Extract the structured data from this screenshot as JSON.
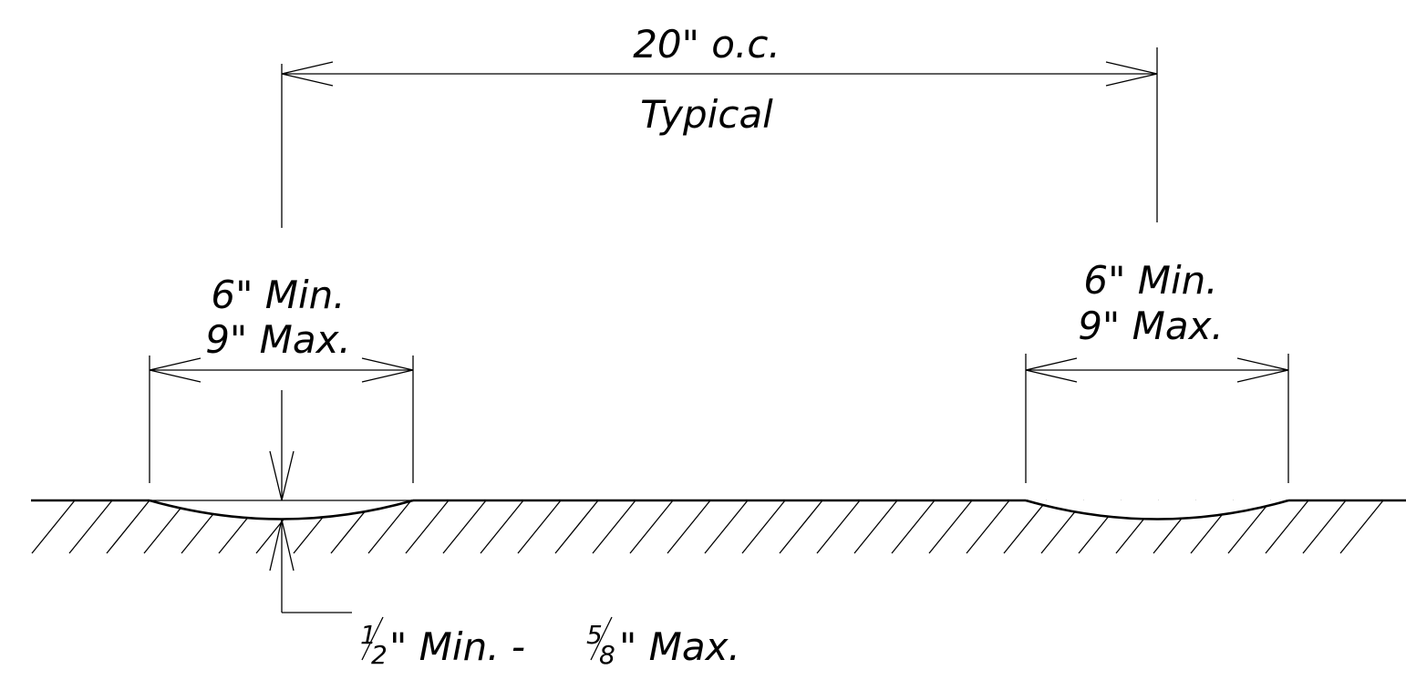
{
  "spacing_dimension": {
    "value": "20\" o.c.",
    "note": "Typical"
  },
  "left_width_dimension": {
    "min": "6\" Min.",
    "max": "9\" Max."
  },
  "right_width_dimension": {
    "min": "6\" Min.",
    "max": "9\" Max."
  },
  "depth_dimension": {
    "min_numerator": "1",
    "min_denominator": "2",
    "min_suffix": "\" Min. -",
    "max_numerator": "5",
    "max_denominator": "8",
    "max_suffix": "\" Max."
  }
}
